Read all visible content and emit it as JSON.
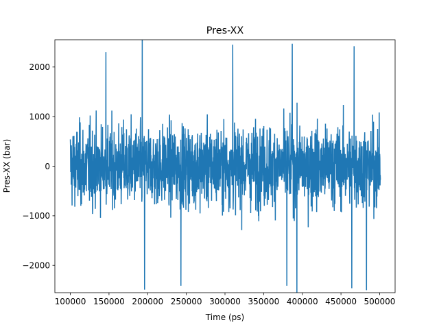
{
  "chart_data": {
    "type": "line",
    "title": "Pres-XX",
    "xlabel": "Time (ps)",
    "ylabel": "Pres-XX (bar)",
    "xlim": [
      80000,
      520000
    ],
    "ylim": [
      -2550,
      2550
    ],
    "xticks": [
      100000,
      150000,
      200000,
      250000,
      300000,
      350000,
      400000,
      450000,
      500000
    ],
    "xtick_labels": [
      "100000",
      "150000",
      "200000",
      "250000",
      "300000",
      "350000",
      "400000",
      "450000",
      "500000"
    ],
    "yticks": [
      -2000,
      -1000,
      0,
      1000,
      2000
    ],
    "ytick_labels": [
      "−2000",
      "−1000",
      "0",
      "1000",
      "2000"
    ],
    "grid": false,
    "series": [
      {
        "color": "#1f77b4",
        "x_range": [
          100000,
          501000
        ],
        "typical_band": [
          -1500,
          1500
        ],
        "extremes": [
          {
            "x": 193000,
            "y": 2560
          },
          {
            "x": 387000,
            "y": 2470
          },
          {
            "x": 310000,
            "y": 2450
          },
          {
            "x": 467000,
            "y": 2420
          },
          {
            "x": 146000,
            "y": 2300
          },
          {
            "x": 393000,
            "y": -2620
          },
          {
            "x": 483000,
            "y": -2500
          },
          {
            "x": 196000,
            "y": -2490
          },
          {
            "x": 464000,
            "y": -2460
          },
          {
            "x": 380000,
            "y": -2410
          },
          {
            "x": 243000,
            "y": -2410
          }
        ]
      }
    ]
  }
}
